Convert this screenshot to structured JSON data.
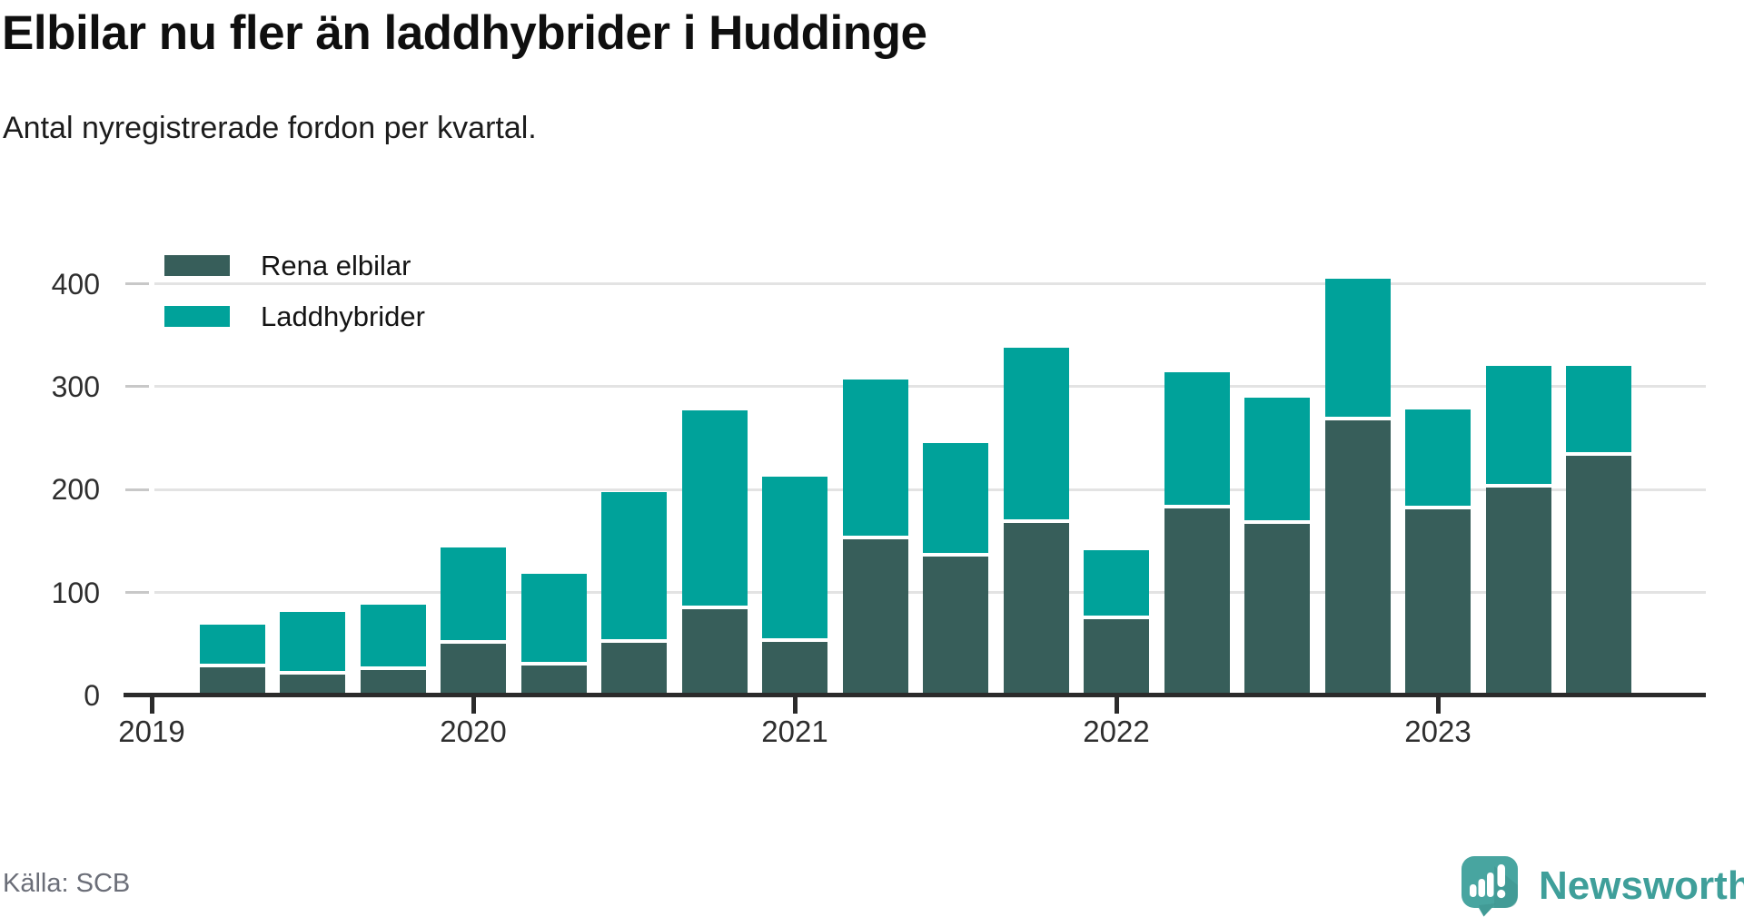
{
  "header": {
    "title": "Elbilar nu fler än laddhybrider i Huddinge",
    "subtitle": "Antal nyregistrerade fordon per kvartal."
  },
  "source": {
    "label": "Källa: SCB"
  },
  "logo": {
    "text": "Newsworthy",
    "icon": "speech-bubble-bar-chart-icon",
    "color": "#3f9f9a"
  },
  "colors": {
    "pure_electric": "#375e5a",
    "plugin_hybrid": "#00a29a",
    "axis": "#2b2b2b",
    "gridline": "#e3e3e3",
    "text": "#2e2e2e"
  },
  "chart_data": {
    "type": "bar",
    "stacked": true,
    "title": "Elbilar nu fler än laddhybrider i Huddinge",
    "subtitle": "Antal nyregistrerade fordon per kvartal.",
    "categories": [
      "2019 Q2",
      "2019 Q3",
      "2019 Q4",
      "2020 Q1",
      "2020 Q2",
      "2020 Q3",
      "2020 Q4",
      "2021 Q1",
      "2021 Q2",
      "2021 Q3",
      "2021 Q4",
      "2022 Q1",
      "2022 Q2",
      "2022 Q3",
      "2022 Q4",
      "2023 Q1",
      "2023 Q2",
      "2023 Q3"
    ],
    "series": [
      {
        "name": "Rena elbilar",
        "color": "#375e5a",
        "values": [
          27,
          20,
          25,
          50,
          29,
          51,
          84,
          52,
          152,
          135,
          168,
          74,
          182,
          167,
          267,
          181,
          202,
          233
        ]
      },
      {
        "name": "Laddhybrider",
        "color": "#00a29a",
        "values": [
          42,
          61,
          63,
          94,
          89,
          147,
          193,
          161,
          155,
          110,
          170,
          67,
          132,
          122,
          138,
          97,
          118,
          87
        ]
      }
    ],
    "ylabel": "",
    "xlabel": "",
    "ylim": [
      0,
      430
    ],
    "grid": "horizontal",
    "legend_position": "top-left",
    "y_axis": {
      "ticks": [
        {
          "label": "0",
          "value": 0
        },
        {
          "label": "100",
          "value": 100
        },
        {
          "label": "200",
          "value": 200
        },
        {
          "label": "300",
          "value": 300
        },
        {
          "label": "400",
          "value": 400
        }
      ]
    },
    "x_axis": {
      "ticks": [
        {
          "label": "2019",
          "quarter_index": -1
        },
        {
          "label": "2020",
          "quarter_index": 3
        },
        {
          "label": "2021",
          "quarter_index": 7
        },
        {
          "label": "2022",
          "quarter_index": 11
        },
        {
          "label": "2023",
          "quarter_index": 15
        }
      ]
    }
  }
}
